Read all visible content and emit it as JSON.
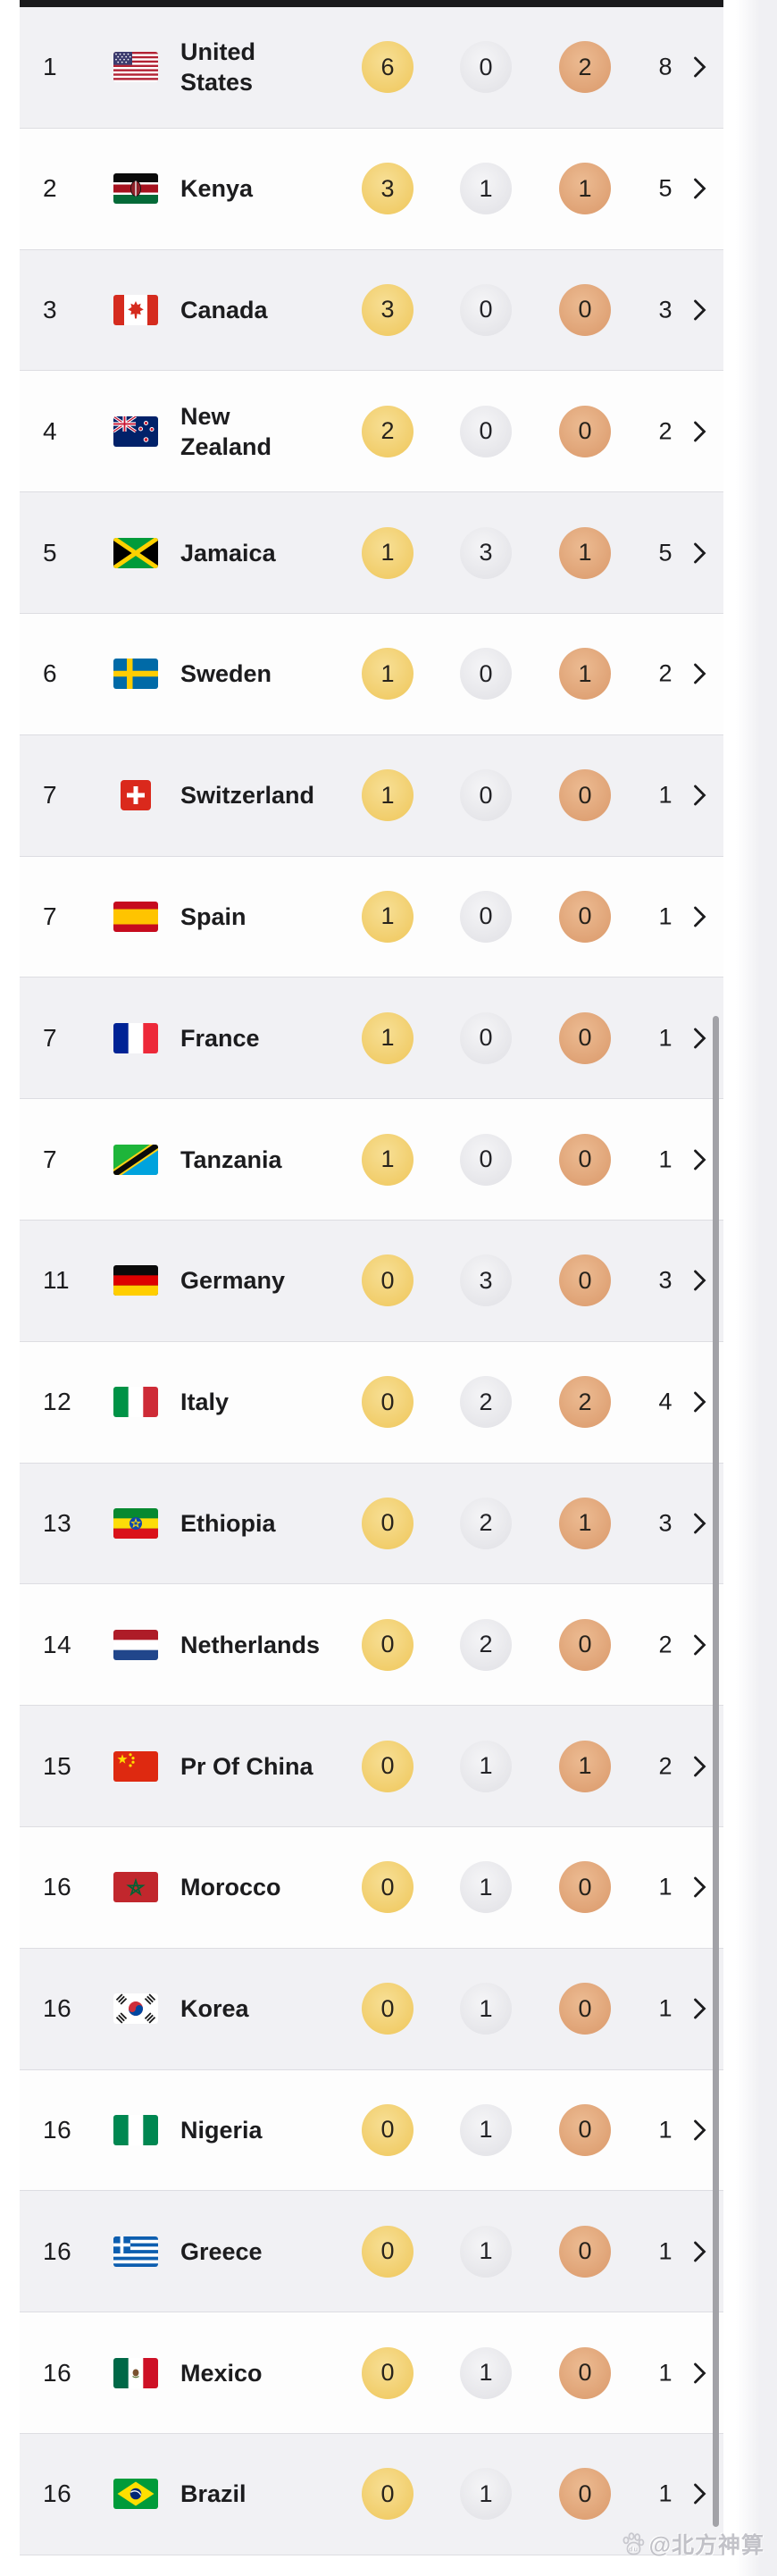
{
  "theme": {
    "gold_color": "#F1CD6A",
    "silver_color": "#E7E7EB",
    "bronze_color": "#DFA275",
    "row_alt_color": "#F1F1F4",
    "row_color": "#FDFDFD",
    "top_bar_color": "#1A1A1C",
    "text_color": "#1C1C1E"
  },
  "watermark": {
    "icon": "baidu-paw-icon",
    "text": "@北方神算"
  },
  "medal_table": {
    "rows": [
      {
        "rank": "1",
        "country": "United States",
        "flag": "us",
        "gold": "6",
        "silver": "0",
        "bronze": "2",
        "total": "8"
      },
      {
        "rank": "2",
        "country": "Kenya",
        "flag": "ke",
        "gold": "3",
        "silver": "1",
        "bronze": "1",
        "total": "5"
      },
      {
        "rank": "3",
        "country": "Canada",
        "flag": "ca",
        "gold": "3",
        "silver": "0",
        "bronze": "0",
        "total": "3"
      },
      {
        "rank": "4",
        "country": "New Zealand",
        "flag": "nz",
        "gold": "2",
        "silver": "0",
        "bronze": "0",
        "total": "2"
      },
      {
        "rank": "5",
        "country": "Jamaica",
        "flag": "jm",
        "gold": "1",
        "silver": "3",
        "bronze": "1",
        "total": "5"
      },
      {
        "rank": "6",
        "country": "Sweden",
        "flag": "se",
        "gold": "1",
        "silver": "0",
        "bronze": "1",
        "total": "2"
      },
      {
        "rank": "7",
        "country": "Switzerland",
        "flag": "ch",
        "gold": "1",
        "silver": "0",
        "bronze": "0",
        "total": "1"
      },
      {
        "rank": "7",
        "country": "Spain",
        "flag": "es",
        "gold": "1",
        "silver": "0",
        "bronze": "0",
        "total": "1"
      },
      {
        "rank": "7",
        "country": "France",
        "flag": "fr",
        "gold": "1",
        "silver": "0",
        "bronze": "0",
        "total": "1"
      },
      {
        "rank": "7",
        "country": "Tanzania",
        "flag": "tz",
        "gold": "1",
        "silver": "0",
        "bronze": "0",
        "total": "1"
      },
      {
        "rank": "11",
        "country": "Germany",
        "flag": "de",
        "gold": "0",
        "silver": "3",
        "bronze": "0",
        "total": "3"
      },
      {
        "rank": "12",
        "country": "Italy",
        "flag": "it",
        "gold": "0",
        "silver": "2",
        "bronze": "2",
        "total": "4"
      },
      {
        "rank": "13",
        "country": "Ethiopia",
        "flag": "et",
        "gold": "0",
        "silver": "2",
        "bronze": "1",
        "total": "3"
      },
      {
        "rank": "14",
        "country": "Netherlands",
        "flag": "nl",
        "gold": "0",
        "silver": "2",
        "bronze": "0",
        "total": "2"
      },
      {
        "rank": "15",
        "country": "Pr Of China",
        "flag": "cn",
        "gold": "0",
        "silver": "1",
        "bronze": "1",
        "total": "2"
      },
      {
        "rank": "16",
        "country": "Morocco",
        "flag": "ma",
        "gold": "0",
        "silver": "1",
        "bronze": "0",
        "total": "1"
      },
      {
        "rank": "16",
        "country": "Korea",
        "flag": "kr",
        "gold": "0",
        "silver": "1",
        "bronze": "0",
        "total": "1"
      },
      {
        "rank": "16",
        "country": "Nigeria",
        "flag": "ng",
        "gold": "0",
        "silver": "1",
        "bronze": "0",
        "total": "1"
      },
      {
        "rank": "16",
        "country": "Greece",
        "flag": "gr",
        "gold": "0",
        "silver": "1",
        "bronze": "0",
        "total": "1"
      },
      {
        "rank": "16",
        "country": "Mexico",
        "flag": "mx",
        "gold": "0",
        "silver": "1",
        "bronze": "0",
        "total": "1"
      },
      {
        "rank": "16",
        "country": "Brazil",
        "flag": "br",
        "gold": "0",
        "silver": "1",
        "bronze": "0",
        "total": "1"
      }
    ]
  }
}
